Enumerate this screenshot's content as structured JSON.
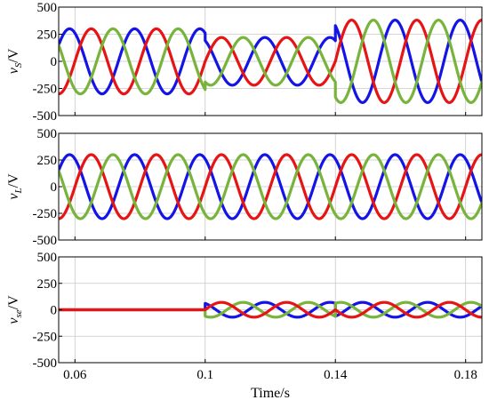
{
  "chart_data": [
    {
      "type": "line",
      "panel": "source-voltage",
      "ylabel_main": "v",
      "ylabel_sub": "S",
      "ylabel_unit": "/V",
      "ylim": [
        -500,
        500
      ],
      "yticks": [
        500,
        250,
        0,
        -250,
        -500
      ],
      "xlim": [
        0.055,
        0.185
      ],
      "xticks": [
        0.06,
        0.1,
        0.14,
        0.18
      ],
      "grid": true,
      "series": [
        {
          "color": "#1414e6",
          "segments": [
            {
              "x0": 0.055,
              "x1": 0.1,
              "amp": 300,
              "phase_deg": 120
            },
            {
              "x0": 0.1,
              "x1": 0.14,
              "amp": 220,
              "phase_deg": 120
            },
            {
              "x0": 0.14,
              "x1": 0.185,
              "amp": 380,
              "phase_deg": 120
            }
          ]
        },
        {
          "color": "#e61414",
          "segments": [
            {
              "x0": 0.055,
              "x1": 0.1,
              "amp": 300,
              "phase_deg": 0
            },
            {
              "x0": 0.1,
              "x1": 0.14,
              "amp": 220,
              "phase_deg": 0
            },
            {
              "x0": 0.14,
              "x1": 0.185,
              "amp": 380,
              "phase_deg": 0
            }
          ]
        },
        {
          "color": "#78b43c",
          "segments": [
            {
              "x0": 0.055,
              "x1": 0.1,
              "amp": 300,
              "phase_deg": -120
            },
            {
              "x0": 0.1,
              "x1": 0.14,
              "amp": 220,
              "phase_deg": -120
            },
            {
              "x0": 0.14,
              "x1": 0.185,
              "amp": 380,
              "phase_deg": -120
            }
          ]
        }
      ]
    },
    {
      "type": "line",
      "panel": "load-voltage",
      "ylabel_main": "v",
      "ylabel_sub": "L",
      "ylabel_unit": "/V",
      "ylim": [
        -500,
        500
      ],
      "yticks": [
        500,
        250,
        0,
        -250,
        -500
      ],
      "xlim": [
        0.055,
        0.185
      ],
      "xticks": [
        0.06,
        0.1,
        0.14,
        0.18
      ],
      "grid": true,
      "series": [
        {
          "color": "#1414e6",
          "segments": [
            {
              "x0": 0.055,
              "x1": 0.185,
              "amp": 300,
              "phase_deg": 120
            }
          ]
        },
        {
          "color": "#e61414",
          "segments": [
            {
              "x0": 0.055,
              "x1": 0.185,
              "amp": 300,
              "phase_deg": 0
            }
          ]
        },
        {
          "color": "#78b43c",
          "segments": [
            {
              "x0": 0.055,
              "x1": 0.185,
              "amp": 300,
              "phase_deg": -120
            }
          ]
        }
      ]
    },
    {
      "type": "line",
      "panel": "series-injected-voltage",
      "ylabel_main": "v",
      "ylabel_sub": "se",
      "ylabel_unit": "/V",
      "ylim": [
        -500,
        500
      ],
      "yticks": [
        500,
        250,
        0,
        -250,
        -500
      ],
      "xlim": [
        0.055,
        0.185
      ],
      "xticks": [
        0.06,
        0.1,
        0.14,
        0.18
      ],
      "xlabel": "Time/s",
      "grid": true,
      "series": [
        {
          "color": "#1414e6",
          "segments": [
            {
              "x0": 0.055,
              "x1": 0.1,
              "amp": 0,
              "phase_deg": 120
            },
            {
              "x0": 0.1,
              "x1": 0.14,
              "amp": 70,
              "phase_deg": 120
            },
            {
              "x0": 0.14,
              "x1": 0.185,
              "amp": 70,
              "phase_deg": -60
            }
          ]
        },
        {
          "color": "#78b43c",
          "segments": [
            {
              "x0": 0.055,
              "x1": 0.1,
              "amp": 0,
              "phase_deg": -120
            },
            {
              "x0": 0.1,
              "x1": 0.14,
              "amp": 70,
              "phase_deg": -120
            },
            {
              "x0": 0.14,
              "x1": 0.185,
              "amp": 70,
              "phase_deg": 60
            }
          ]
        },
        {
          "color": "#e61414",
          "segments": [
            {
              "x0": 0.055,
              "x1": 0.1,
              "amp": 0,
              "phase_deg": 0
            },
            {
              "x0": 0.1,
              "x1": 0.14,
              "amp": 70,
              "phase_deg": 0
            },
            {
              "x0": 0.14,
              "x1": 0.185,
              "amp": 70,
              "phase_deg": 180
            }
          ]
        }
      ]
    }
  ],
  "frequency_hz": 50,
  "x_tick_labels": [
    "0.06",
    "0.1",
    "0.14",
    "0.18"
  ],
  "y_tick_labels": [
    "500",
    "250",
    "0",
    "-250",
    "-500"
  ]
}
